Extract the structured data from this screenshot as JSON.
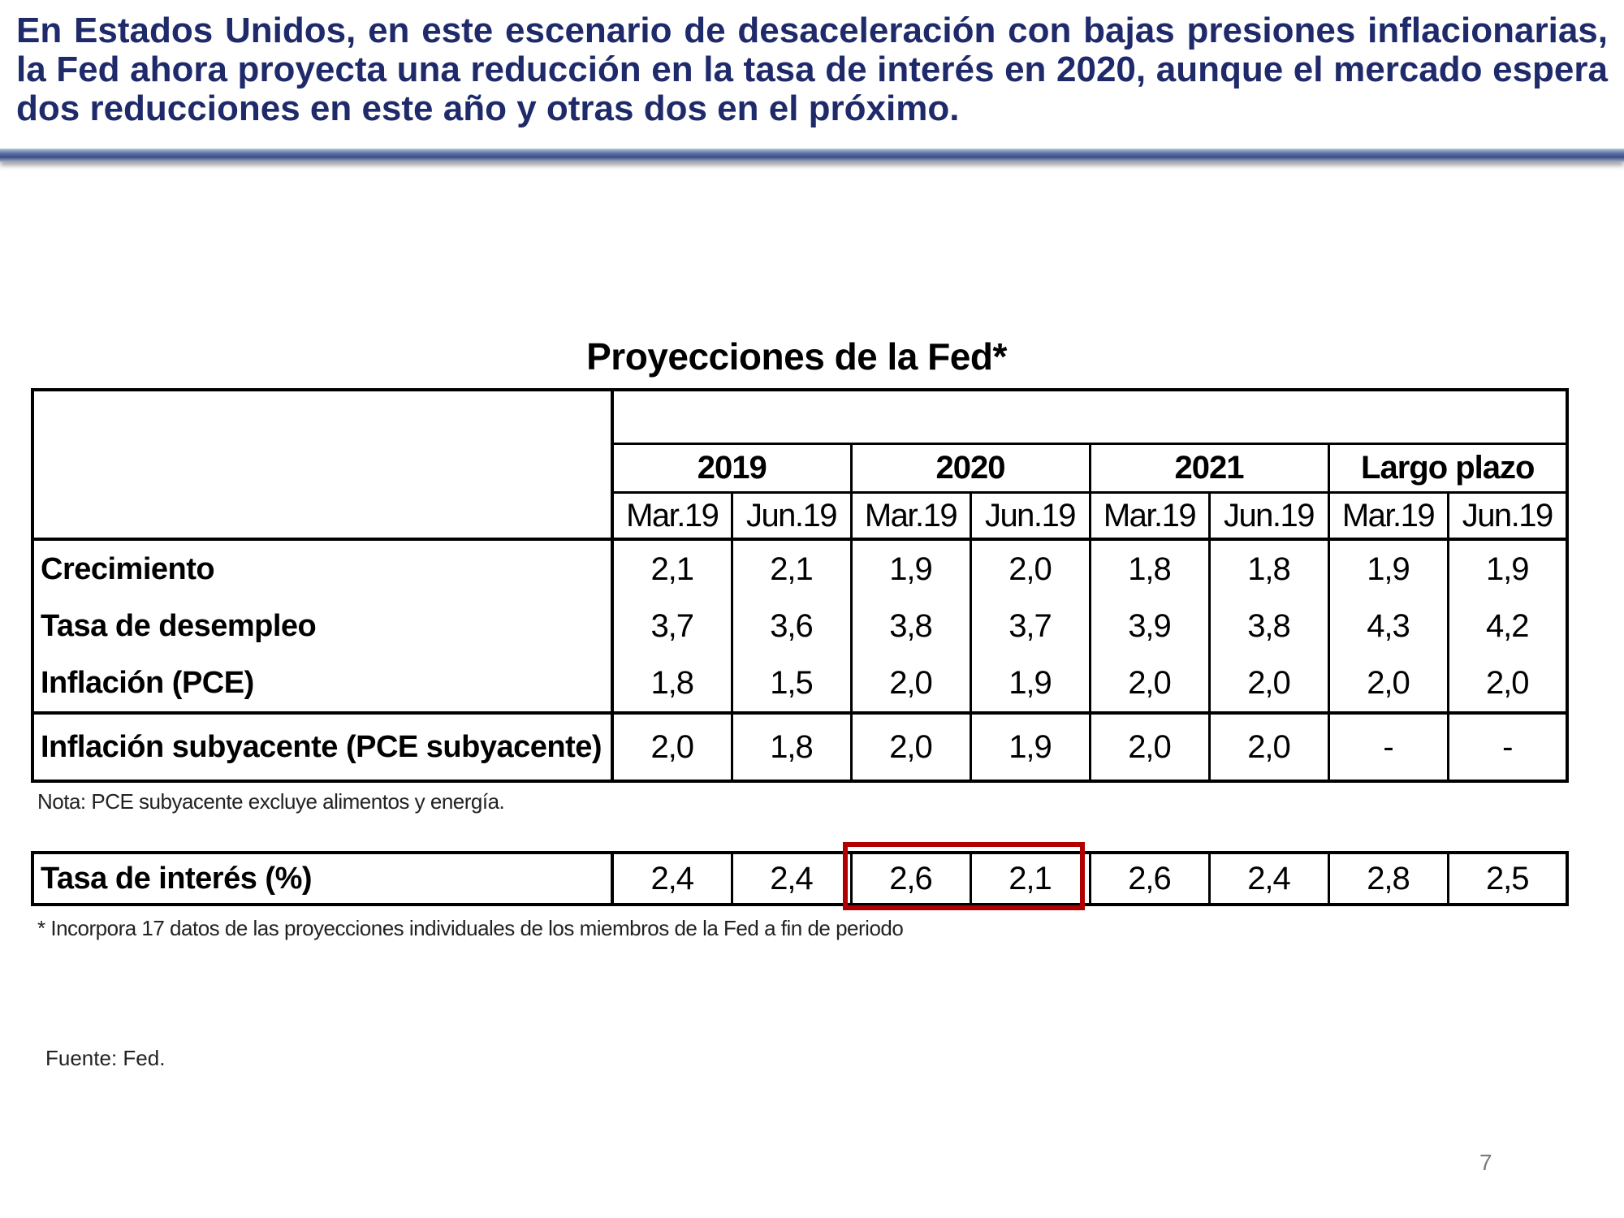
{
  "headline": "En Estados Unidos, en este escenario de desaceleración con bajas presiones inflacionarias, la Fed ahora proyecta una reducción en la tasa de interés en 2020, aunque el mercado espera dos reducciones en este año y otras dos en el próximo.",
  "table": {
    "title": "Proyecciones de la Fed*",
    "years": [
      "2019",
      "2020",
      "2021",
      "Largo plazo"
    ],
    "sub_headers": [
      "Mar.19",
      "Jun.19",
      "Mar.19",
      "Jun.19",
      "Mar.19",
      "Jun.19",
      "Mar.19",
      "Jun.19"
    ],
    "rows": [
      {
        "label": "Crecimiento",
        "values": [
          "2,1",
          "2,1",
          "1,9",
          "2,0",
          "1,8",
          "1,8",
          "1,9",
          "1,9"
        ]
      },
      {
        "label": "Tasa de desempleo",
        "values": [
          "3,7",
          "3,6",
          "3,8",
          "3,7",
          "3,9",
          "3,8",
          "4,3",
          "4,2"
        ]
      },
      {
        "label": "Inflación (PCE)",
        "values": [
          "1,8",
          "1,5",
          "2,0",
          "1,9",
          "2,0",
          "2,0",
          "2,0",
          "2,0"
        ]
      },
      {
        "label": "Inflación subyacente (PCE subyacente)",
        "values": [
          "2,0",
          "1,8",
          "2,0",
          "1,9",
          "2,0",
          "2,0",
          "-",
          "-"
        ]
      }
    ],
    "note": "Nota: PCE subyacente excluye alimentos y energía.",
    "rate_row": {
      "label": "Tasa de interés (%)",
      "values": [
        "2,4",
        "2,4",
        "2,6",
        "2,1",
        "2,6",
        "2,4",
        "2,8",
        "2,5"
      ]
    },
    "footnote": "* Incorpora 17 datos de las proyecciones individuales de los miembros de la Fed a fin de periodo"
  },
  "source": "Fuente: Fed.",
  "page_number": "7",
  "colors": {
    "headline": "#1f2a6b",
    "highlight_box": "#b00000"
  }
}
